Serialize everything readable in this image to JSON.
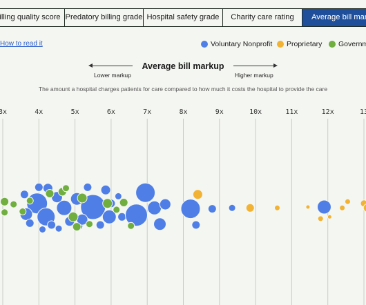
{
  "tabs": [
    {
      "label": "illing quality score",
      "active": false
    },
    {
      "label": "Predatory billing grade",
      "active": false
    },
    {
      "label": "Hospital safety grade",
      "active": false
    },
    {
      "label": "Charity care rating",
      "active": false
    },
    {
      "label": "Average bill markup",
      "active": true
    }
  ],
  "how_to_read": "How to read it",
  "legend": [
    {
      "label": "Voluntary Nonprofit",
      "color": "#4f7fe6"
    },
    {
      "label": "Proprietary",
      "color": "#f2b233"
    },
    {
      "label": "Government",
      "color": "#6fae3f"
    }
  ],
  "chart_data": {
    "type": "scatter",
    "title": "Average bill markup",
    "subtitle": "The amount a hospital charges patients for care compared to how much it costs the hospital to provide the care",
    "direction_low": "Lower markup",
    "direction_high": "Higher markup",
    "x_ticks": [
      "3x",
      "4x",
      "5x",
      "6x",
      "7x",
      "8x",
      "9x",
      "10x",
      "11x",
      "12x",
      "13"
    ],
    "x_range": [
      3,
      13
    ],
    "grid": true,
    "series": [
      {
        "name": "Voluntary Nonprofit",
        "color": "#4f7fe6",
        "points": [
          {
            "x": 3.95,
            "s": 15,
            "j": -0.2
          },
          {
            "x": 4.2,
            "s": 13,
            "j": 0.55
          },
          {
            "x": 3.65,
            "s": 9,
            "j": 0.4
          },
          {
            "x": 3.75,
            "s": 6,
            "j": 0.9
          },
          {
            "x": 4.0,
            "s": 6,
            "j": -1.1
          },
          {
            "x": 4.25,
            "s": 7,
            "j": -1.05
          },
          {
            "x": 4.1,
            "s": 5,
            "j": 1.25
          },
          {
            "x": 4.35,
            "s": 6,
            "j": 1.0
          },
          {
            "x": 3.6,
            "s": 6,
            "j": -0.7
          },
          {
            "x": 4.7,
            "s": 11,
            "j": 0.05
          },
          {
            "x": 4.5,
            "s": 8,
            "j": -0.55
          },
          {
            "x": 4.85,
            "s": 7,
            "j": 0.8
          },
          {
            "x": 5.05,
            "s": 9,
            "j": -0.45
          },
          {
            "x": 5.1,
            "s": 6,
            "j": 1.05
          },
          {
            "x": 4.55,
            "s": 5,
            "j": 1.2
          },
          {
            "x": 5.5,
            "s": 18,
            "j": 0.0
          },
          {
            "x": 5.2,
            "s": 8,
            "j": 0.7
          },
          {
            "x": 5.35,
            "s": 6,
            "j": -1.1
          },
          {
            "x": 5.7,
            "s": 6,
            "j": 1.0
          },
          {
            "x": 5.85,
            "s": 7,
            "j": -0.95
          },
          {
            "x": 5.95,
            "s": 10,
            "j": 0.55
          },
          {
            "x": 6.0,
            "s": 6,
            "j": -0.2
          },
          {
            "x": 6.3,
            "s": 6,
            "j": 0.55
          },
          {
            "x": 6.2,
            "s": 5,
            "j": -0.6
          },
          {
            "x": 6.7,
            "s": 16,
            "j": 0.45
          },
          {
            "x": 6.95,
            "s": 14,
            "j": -0.8
          },
          {
            "x": 7.2,
            "s": 10,
            "j": 0.05
          },
          {
            "x": 7.35,
            "s": 9,
            "j": 0.95
          },
          {
            "x": 7.5,
            "s": 8,
            "j": -0.15
          },
          {
            "x": 8.2,
            "s": 14,
            "j": 0.1
          },
          {
            "x": 8.35,
            "s": 6,
            "j": 1.0
          },
          {
            "x": 8.8,
            "s": 6,
            "j": 0.1
          },
          {
            "x": 9.35,
            "s": 5,
            "j": 0.05
          },
          {
            "x": 11.9,
            "s": 10,
            "j": 0.0
          }
        ]
      },
      {
        "name": "Proprietary",
        "color": "#f2b233",
        "points": [
          {
            "x": 8.4,
            "s": 7,
            "j": -0.7
          },
          {
            "x": 9.85,
            "s": 6,
            "j": 0.05
          },
          {
            "x": 10.6,
            "s": 4,
            "j": 0.05
          },
          {
            "x": 11.45,
            "s": 3,
            "j": 0.0
          },
          {
            "x": 11.8,
            "s": 4,
            "j": 0.65
          },
          {
            "x": 12.05,
            "s": 3,
            "j": 0.55
          },
          {
            "x": 12.4,
            "s": 4,
            "j": 0.05
          },
          {
            "x": 12.55,
            "s": 4,
            "j": -0.3
          },
          {
            "x": 13.0,
            "s": 5,
            "j": -0.2
          },
          {
            "x": 13.1,
            "s": 6,
            "j": 0.05
          }
        ]
      },
      {
        "name": "Government",
        "color": "#6fae3f",
        "points": [
          {
            "x": 3.05,
            "s": 6,
            "j": -0.3
          },
          {
            "x": 3.3,
            "s": 5,
            "j": -0.15
          },
          {
            "x": 3.05,
            "s": 5,
            "j": 0.3
          },
          {
            "x": 3.55,
            "s": 5,
            "j": 0.25
          },
          {
            "x": 3.75,
            "s": 5,
            "j": -0.35
          },
          {
            "x": 4.3,
            "s": 6,
            "j": -0.75
          },
          {
            "x": 4.65,
            "s": 6,
            "j": -0.85
          },
          {
            "x": 4.95,
            "s": 7,
            "j": 0.55
          },
          {
            "x": 4.75,
            "s": 5,
            "j": -1.05
          },
          {
            "x": 5.2,
            "s": 7,
            "j": -0.5
          },
          {
            "x": 5.05,
            "s": 6,
            "j": 1.1
          },
          {
            "x": 5.4,
            "s": 5,
            "j": 0.95
          },
          {
            "x": 5.9,
            "s": 7,
            "j": -0.2
          },
          {
            "x": 6.35,
            "s": 6,
            "j": -0.25
          },
          {
            "x": 6.55,
            "s": 5,
            "j": 1.05
          },
          {
            "x": 6.15,
            "s": 5,
            "j": 0.15
          }
        ]
      }
    ]
  }
}
